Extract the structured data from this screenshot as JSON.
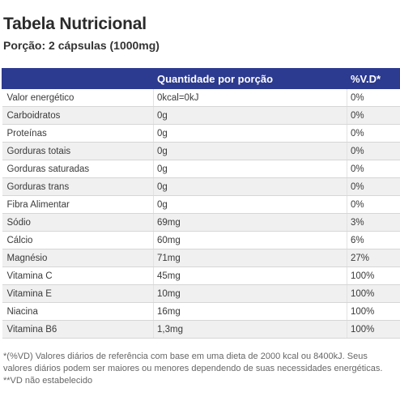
{
  "title": "Tabela Nutricional",
  "subtitle": "Porção: 2 cápsulas (1000mg)",
  "table": {
    "headers": [
      "",
      "Quantidade por porção",
      "%V.D*"
    ],
    "rows": [
      {
        "nutrient": "Valor energético",
        "amount": "0kcal=0kJ",
        "vd": "0%"
      },
      {
        "nutrient": "Carboidratos",
        "amount": "0g",
        "vd": "0%"
      },
      {
        "nutrient": "Proteínas",
        "amount": "0g",
        "vd": "0%"
      },
      {
        "nutrient": "Gorduras totais",
        "amount": "0g",
        "vd": "0%"
      },
      {
        "nutrient": "Gorduras saturadas",
        "amount": "0g",
        "vd": "0%"
      },
      {
        "nutrient": "Gorduras trans",
        "amount": "0g",
        "vd": "0%"
      },
      {
        "nutrient": "Fibra Alimentar",
        "amount": "0g",
        "vd": "0%"
      },
      {
        "nutrient": "Sódio",
        "amount": "69mg",
        "vd": "3%"
      },
      {
        "nutrient": "Cálcio",
        "amount": "60mg",
        "vd": "6%"
      },
      {
        "nutrient": "Magnésio",
        "amount": "71mg",
        "vd": "27%"
      },
      {
        "nutrient": "Vitamina C",
        "amount": "45mg",
        "vd": "100%"
      },
      {
        "nutrient": "Vitamina E",
        "amount": "10mg",
        "vd": "100%"
      },
      {
        "nutrient": "Niacina",
        "amount": "16mg",
        "vd": "100%"
      },
      {
        "nutrient": "Vitamina B6",
        "amount": "1,3mg",
        "vd": "100%"
      }
    ]
  },
  "footnote": "*(%VD) Valores diários de referência com base em uma dieta de 2000 kcal ou 8400kJ. Seus valores diários podem ser maiores ou menores dependendo de suas necessidades energéticas. **VD não estabelecido",
  "colors": {
    "header_bg": "#2c3a8f",
    "header_text": "#ffffff",
    "row_shade": "#f0f0f0"
  }
}
